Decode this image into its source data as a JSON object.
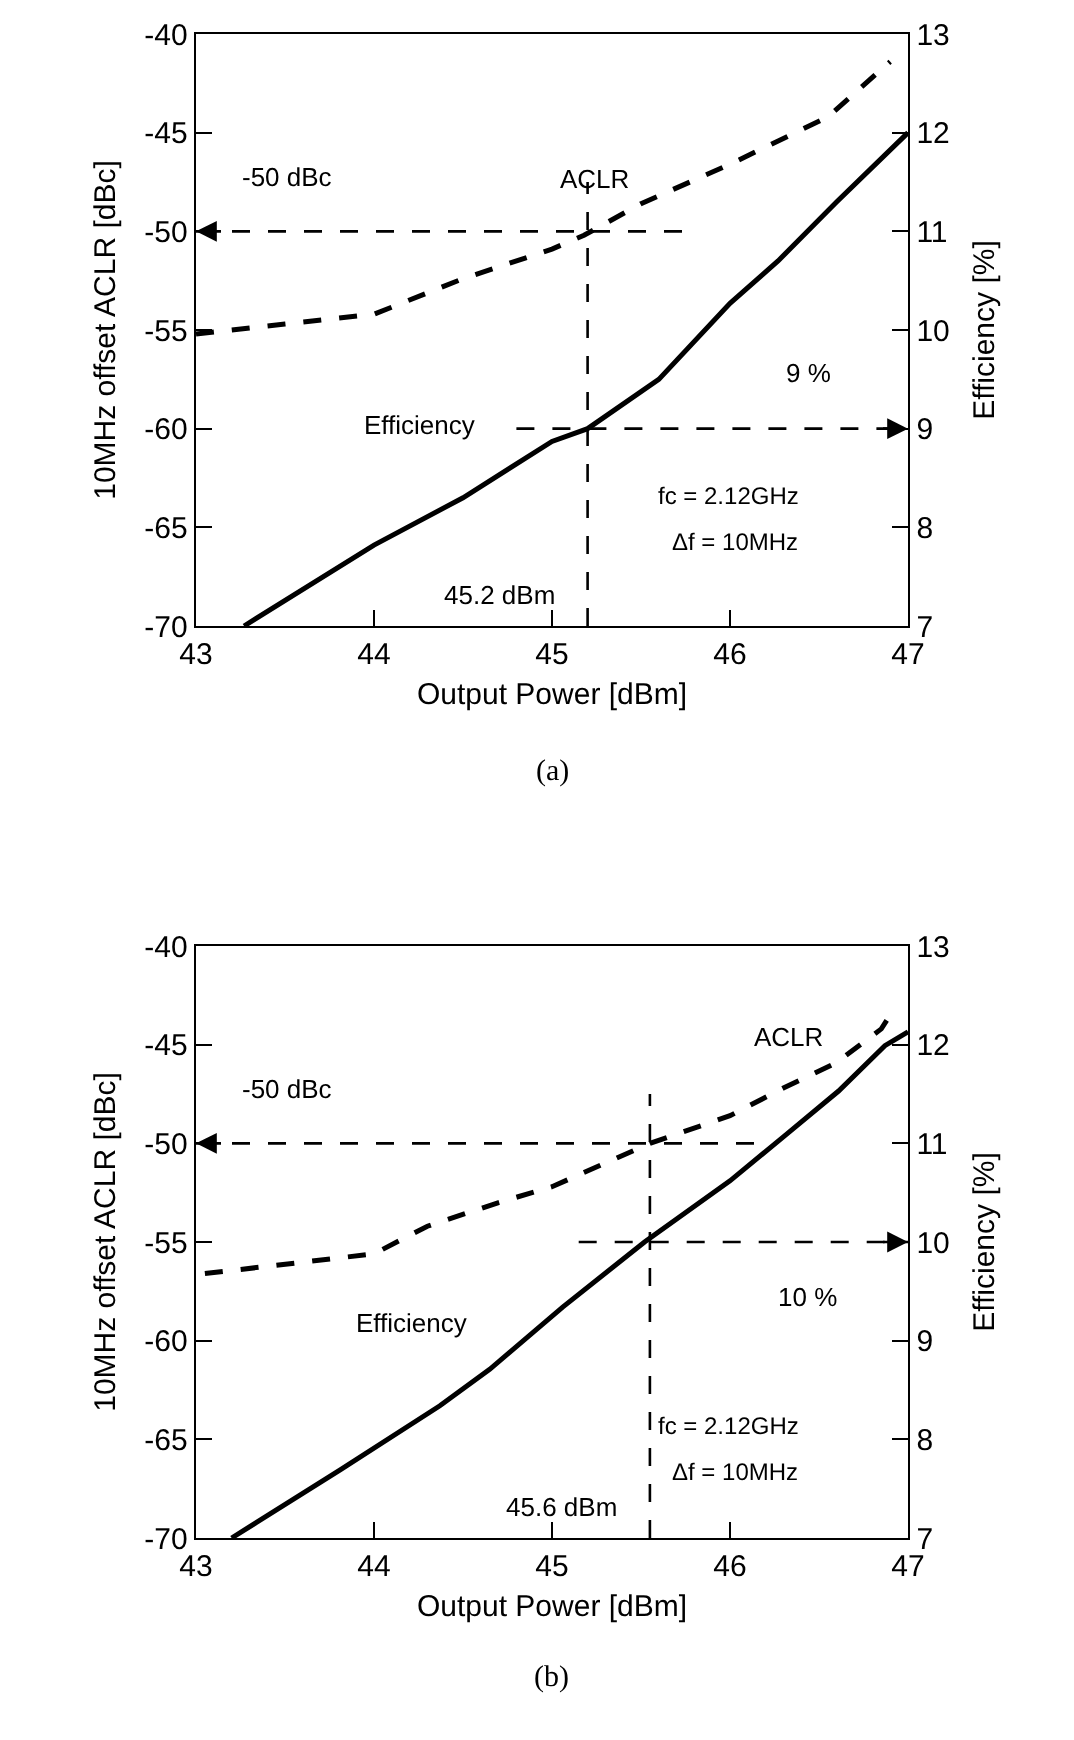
{
  "chart_data": [
    {
      "type": "line",
      "xlabel": "Output Power [dBm]",
      "ylabel": "10MHz offset ACLR [dBc]",
      "y2label": "Efficiency [%]",
      "xlim": [
        43,
        47
      ],
      "xticks": [
        43,
        44,
        45,
        46,
        47
      ],
      "ylim": [
        -70,
        -40
      ],
      "yticks": [
        -70,
        -65,
        -60,
        -55,
        -50,
        -45,
        -40
      ],
      "y2lim": [
        7,
        13
      ],
      "y2ticks": [
        7,
        8,
        9,
        10,
        11,
        12,
        13
      ],
      "grid": false,
      "legend": false,
      "marker": "none",
      "series": [
        {
          "name": "ACLR",
          "color": "#000000",
          "line_style": "dashed",
          "x": [
            43,
            43.5,
            44,
            44.5,
            45,
            45.18,
            45.5,
            46,
            46.55,
            46.9
          ],
          "values": [
            -55.2,
            -54.7,
            -54.2,
            -52.4,
            -50.9,
            -50.2,
            -48.6,
            -46.6,
            -44.2,
            -41.4
          ]
        },
        {
          "name": "Efficiency",
          "color": "#000000",
          "line_style": "solid",
          "axis": "y2",
          "x": [
            43.27,
            44,
            44.5,
            45,
            45.2,
            45.6,
            46,
            46.27,
            46.6,
            47
          ],
          "values": [
            7,
            7.82,
            8.3,
            8.87,
            9,
            9.5,
            10.27,
            10.7,
            11.3,
            12
          ]
        }
      ],
      "ref_lines": [
        {
          "axis": "x",
          "value": 45.2,
          "label": "45.2 dBm",
          "color": "#000000",
          "line_style": "dashed"
        },
        {
          "axis": "y",
          "value": -50,
          "label": "-50 dBc",
          "color": "#000000",
          "line_style": "dashed"
        },
        {
          "axis": "y2",
          "value": 9,
          "label": "9 %",
          "color": "#000000",
          "line_style": "dashed"
        }
      ],
      "annotations": [
        "fc = 2.12GHz",
        "Δf = 10MHz",
        "(a)"
      ]
    },
    {
      "type": "line",
      "xlabel": "Output Power [dBm]",
      "ylabel": "10MHz offset ACLR [dBc]",
      "y2label": "Efficiency [%]",
      "xlim": [
        43,
        47
      ],
      "xticks": [
        43,
        44,
        45,
        46,
        47
      ],
      "ylim": [
        -70,
        -40
      ],
      "yticks": [
        -70,
        -65,
        -60,
        -55,
        -50,
        -45,
        -40
      ],
      "y2lim": [
        7,
        13
      ],
      "y2ticks": [
        7,
        8,
        9,
        10,
        11,
        12,
        13
      ],
      "grid": false,
      "legend": false,
      "marker": "none",
      "series": [
        {
          "name": "ACLR",
          "color": "#000000",
          "line_style": "dashed",
          "x": [
            43.05,
            44,
            44.3,
            44.7,
            45,
            45.3,
            45.55,
            46,
            46.3,
            46.6,
            46.85,
            46.9
          ],
          "values": [
            -56.6,
            -55.6,
            -54.2,
            -53,
            -52.2,
            -51,
            -50,
            -48.6,
            -47.2,
            -45.9,
            -44.2,
            -43.5
          ]
        },
        {
          "name": "Efficiency",
          "color": "#000000",
          "line_style": "solid",
          "axis": "y2",
          "x": [
            43.2,
            43.81,
            44.37,
            44.65,
            45.06,
            45.52,
            46,
            46.31,
            46.61,
            46.87,
            47
          ],
          "values": [
            7,
            7.69,
            8.34,
            8.71,
            9.34,
            10,
            10.62,
            11.08,
            11.53,
            11.99,
            12.13
          ]
        }
      ],
      "ref_lines": [
        {
          "axis": "x",
          "value": 45.55,
          "label": "45.6 dBm",
          "color": "#000000",
          "line_style": "dashed"
        },
        {
          "axis": "y",
          "value": -50,
          "label": "-50 dBc",
          "color": "#000000",
          "line_style": "dashed"
        },
        {
          "axis": "y2",
          "value": 10,
          "label": "10 %",
          "color": "#000000",
          "line_style": "dashed"
        }
      ],
      "annotations": [
        "fc = 2.12GHz",
        "Δf = 10MHz",
        "(b)"
      ]
    }
  ]
}
